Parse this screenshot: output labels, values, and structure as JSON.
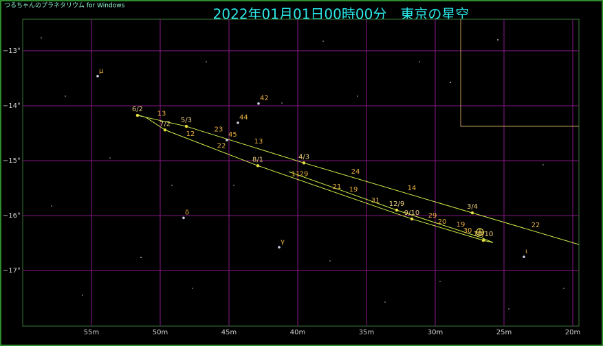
{
  "app_title": "つるちゃんのプラネタリウム for Windows",
  "title": "2022年01月01日00時00分　東京の星空",
  "chart_data": {
    "type": "line",
    "xlim": [
      60,
      19.55
    ],
    "ylim": [
      -12.425,
      -18.01
    ],
    "xticks": [
      {
        "value": 55,
        "label": "55m"
      },
      {
        "value": 50,
        "label": "50m"
      },
      {
        "value": 45,
        "label": "45m"
      },
      {
        "value": 40,
        "label": "40m"
      },
      {
        "value": 35,
        "label": "35m"
      },
      {
        "value": 30,
        "label": "30m"
      },
      {
        "value": 25,
        "label": "25m"
      },
      {
        "value": 20,
        "label": "20m"
      }
    ],
    "yticks": [
      {
        "value": -13,
        "label": "−13°"
      },
      {
        "value": -14,
        "label": "−14°"
      },
      {
        "value": -15,
        "label": "−15°"
      },
      {
        "value": -16,
        "label": "−16°"
      },
      {
        "value": -17,
        "label": "−17°"
      }
    ],
    "grid": true,
    "grid_color": "#8a1a8a",
    "x": [
      19.55,
      27.3,
      39.55,
      48.1,
      51.65,
      51.75,
      51.05,
      49.65,
      42.9,
      31.7,
      26.5,
      25.8,
      26.65,
      32.8,
      40.65
    ],
    "series": [
      {
        "color": "#d2f04a",
        "values": [
          -16.525,
          -15.95,
          -15.04,
          -14.375,
          -14.175,
          -14.16,
          -14.21,
          -14.44,
          -15.09,
          -16.06,
          -16.45,
          -16.49,
          -16.4,
          -15.9,
          -15.2
        ]
      }
    ],
    "date_points": [
      {
        "label": "6/2",
        "x": 51.65,
        "y": -14.175
      },
      {
        "label": "5/3",
        "x": 48.1,
        "y": -14.375
      },
      {
        "label": "4/3",
        "x": 39.55,
        "y": -15.04
      },
      {
        "label": "3/4",
        "x": 27.3,
        "y": -15.95
      },
      {
        "label": "7/2",
        "x": 49.65,
        "y": -14.44
      },
      {
        "label": "8/1",
        "x": 42.9,
        "y": -15.09
      },
      {
        "label": "12/9",
        "x": 32.8,
        "y": -15.9
      },
      {
        "label": "9/10",
        "x": 31.7,
        "y": -16.06
      },
      {
        "label": "10/10",
        "x": 26.5,
        "y": -16.45
      }
    ],
    "day_labels": [
      {
        "label": "13",
        "x": 49.9,
        "y": -14.14
      },
      {
        "label": "12",
        "x": 47.8,
        "y": -14.51
      },
      {
        "label": "23",
        "x": 45.75,
        "y": -14.43
      },
      {
        "label": "22",
        "x": 45.55,
        "y": -14.73
      },
      {
        "label": "13",
        "x": 42.85,
        "y": -14.65
      },
      {
        "label": "24",
        "x": 35.8,
        "y": -15.2
      },
      {
        "label": "14",
        "x": 31.7,
        "y": -15.5
      },
      {
        "label": "22",
        "x": 22.7,
        "y": -16.175
      },
      {
        "label": "11",
        "x": 40.15,
        "y": -15.24
      },
      {
        "label": "29",
        "x": 39.55,
        "y": -15.24
      },
      {
        "label": "21",
        "x": 37.15,
        "y": -15.475
      },
      {
        "label": "19",
        "x": 35.95,
        "y": -15.525
      },
      {
        "label": "31",
        "x": 34.35,
        "y": -15.725
      },
      {
        "label": "29",
        "x": 30.2,
        "y": -16.0
      },
      {
        "label": "20",
        "x": 29.5,
        "y": -16.11
      },
      {
        "label": "19",
        "x": 28.15,
        "y": -16.16
      },
      {
        "label": "30",
        "x": 27.65,
        "y": -16.275
      }
    ],
    "stars": [
      {
        "label": "μ",
        "x": 54.55,
        "y": -13.46
      },
      {
        "label": "δ",
        "x": 48.3,
        "y": -16.04
      },
      {
        "label": "γ",
        "x": 41.35,
        "y": -16.575
      },
      {
        "label": "ι",
        "x": 23.55,
        "y": -16.75
      },
      {
        "label": "42",
        "x": 42.85,
        "y": -13.96
      },
      {
        "label": "44",
        "x": 44.35,
        "y": -14.31
      },
      {
        "label": "45",
        "x": 45.15,
        "y": -14.625
      }
    ]
  }
}
